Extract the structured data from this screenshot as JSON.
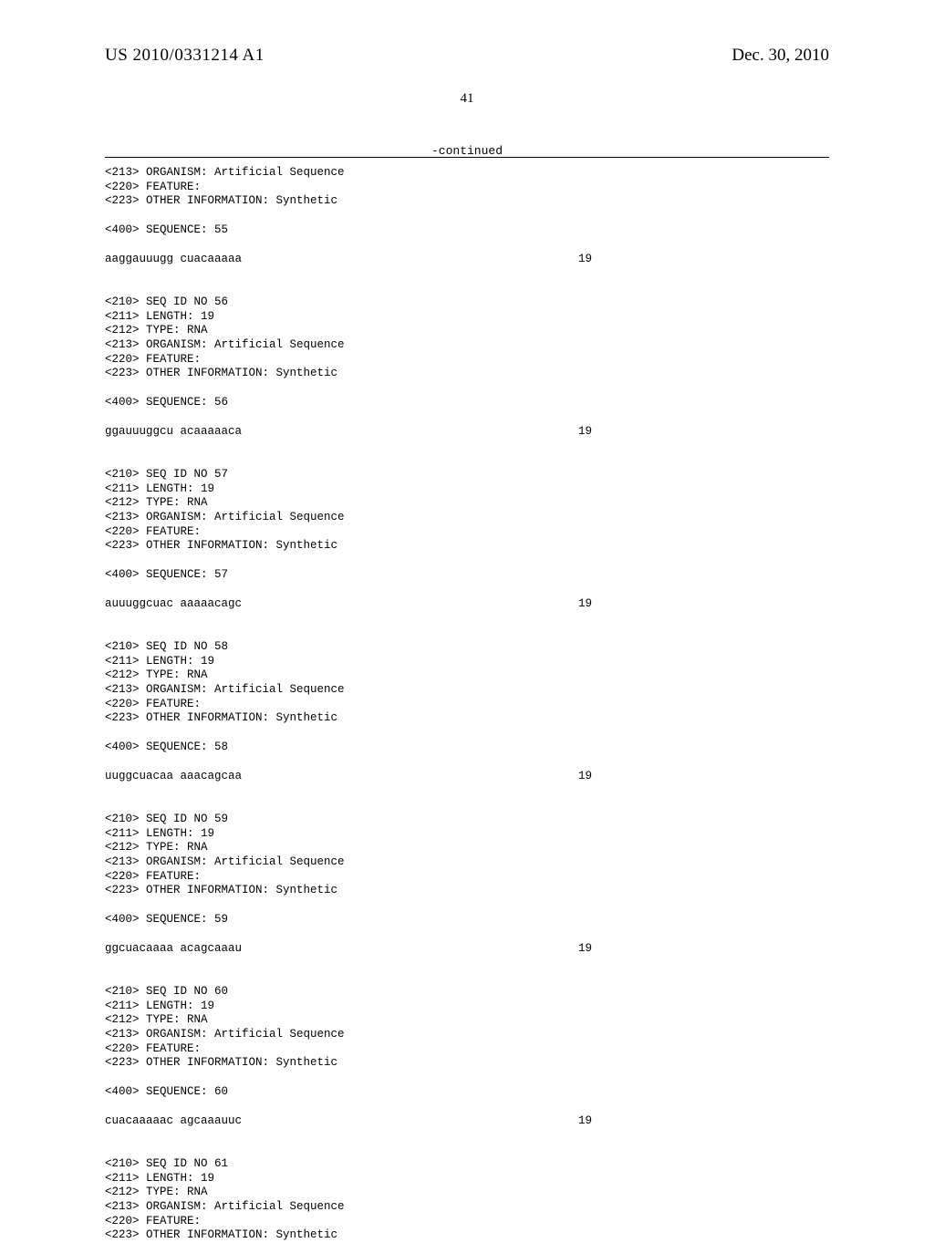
{
  "header": {
    "pub_number": "US 2010/0331214 A1",
    "pub_date": "Dec. 30, 2010"
  },
  "page_number": "41",
  "continued_label": "-continued",
  "sequences": [
    {
      "pre_lines": [
        "<213> ORGANISM: Artificial Sequence",
        "<220> FEATURE:",
        "<223> OTHER INFORMATION: Synthetic"
      ],
      "seq_label": "<400> SEQUENCE: 55",
      "seq_text": "aaggauuugg cuacaaaaa",
      "seq_len": "19"
    },
    {
      "pre_lines": [
        "<210> SEQ ID NO 56",
        "<211> LENGTH: 19",
        "<212> TYPE: RNA",
        "<213> ORGANISM: Artificial Sequence",
        "<220> FEATURE:",
        "<223> OTHER INFORMATION: Synthetic"
      ],
      "seq_label": "<400> SEQUENCE: 56",
      "seq_text": "ggauuuggcu acaaaaaca",
      "seq_len": "19"
    },
    {
      "pre_lines": [
        "<210> SEQ ID NO 57",
        "<211> LENGTH: 19",
        "<212> TYPE: RNA",
        "<213> ORGANISM: Artificial Sequence",
        "<220> FEATURE:",
        "<223> OTHER INFORMATION: Synthetic"
      ],
      "seq_label": "<400> SEQUENCE: 57",
      "seq_text": "auuuggcuac aaaaacagc",
      "seq_len": "19"
    },
    {
      "pre_lines": [
        "<210> SEQ ID NO 58",
        "<211> LENGTH: 19",
        "<212> TYPE: RNA",
        "<213> ORGANISM: Artificial Sequence",
        "<220> FEATURE:",
        "<223> OTHER INFORMATION: Synthetic"
      ],
      "seq_label": "<400> SEQUENCE: 58",
      "seq_text": "uuggcuacaa aaacagcaa",
      "seq_len": "19"
    },
    {
      "pre_lines": [
        "<210> SEQ ID NO 59",
        "<211> LENGTH: 19",
        "<212> TYPE: RNA",
        "<213> ORGANISM: Artificial Sequence",
        "<220> FEATURE:",
        "<223> OTHER INFORMATION: Synthetic"
      ],
      "seq_label": "<400> SEQUENCE: 59",
      "seq_text": "ggcuacaaaa acagcaaau",
      "seq_len": "19"
    },
    {
      "pre_lines": [
        "<210> SEQ ID NO 60",
        "<211> LENGTH: 19",
        "<212> TYPE: RNA",
        "<213> ORGANISM: Artificial Sequence",
        "<220> FEATURE:",
        "<223> OTHER INFORMATION: Synthetic"
      ],
      "seq_label": "<400> SEQUENCE: 60",
      "seq_text": "cuacaaaaac agcaaauuc",
      "seq_len": "19"
    },
    {
      "pre_lines": [
        "<210> SEQ ID NO 61",
        "<211> LENGTH: 19",
        "<212> TYPE: RNA",
        "<213> ORGANISM: Artificial Sequence",
        "<220> FEATURE:",
        "<223> OTHER INFORMATION: Synthetic"
      ],
      "seq_label": "",
      "seq_text": "",
      "seq_len": ""
    }
  ]
}
